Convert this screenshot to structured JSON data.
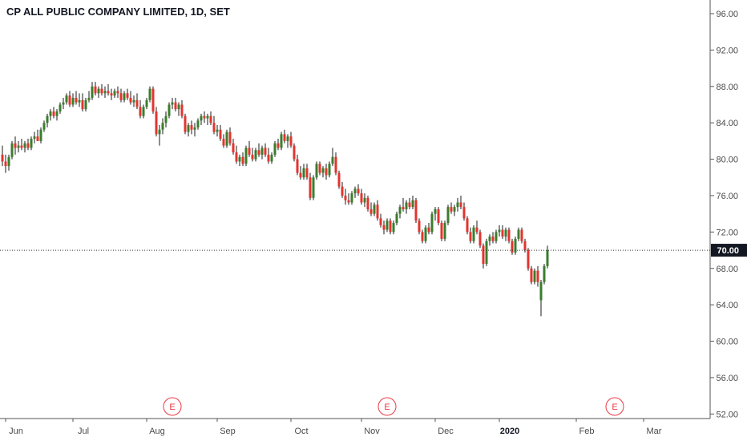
{
  "header": {
    "title": "CP ALL PUBLIC COMPANY LIMITED, 1D, SET"
  },
  "colors": {
    "up": "#3a7d2c",
    "down": "#e3342f",
    "wick": "#1b1b1b",
    "axis_line": "#555555",
    "axis_text": "#4a4a4a",
    "price_line": "#333333",
    "price_badge_bg": "#131722",
    "price_badge_text": "#ffffff",
    "earnings": "#ea3943"
  },
  "chart_data": {
    "type": "candlestick",
    "title": "CP ALL PUBLIC COMPANY LIMITED, 1D, SET",
    "interval": "1D",
    "exchange": "SET",
    "y_axis": {
      "position": "right",
      "ticks": [
        52,
        56,
        60,
        64,
        68,
        72,
        76,
        80,
        84,
        88,
        92,
        96
      ],
      "tick_labels": [
        "52.00",
        "56.00",
        "60.00",
        "64.00",
        "68.00",
        "72.00",
        "76.00",
        "80.00",
        "84.00",
        "88.00",
        "92.00",
        "96.00"
      ],
      "range": [
        51.5,
        97.5
      ]
    },
    "x_axis": {
      "tick_labels": [
        "Jun",
        "Jul",
        "Aug",
        "Sep",
        "Oct",
        "Nov",
        "Dec",
        "2020",
        "Feb",
        "Mar"
      ],
      "tick_index": [
        1,
        22,
        45,
        67,
        90,
        112,
        135,
        155,
        179,
        200
      ]
    },
    "current_price": {
      "value": 70.0,
      "label": "70.00"
    },
    "earnings_markers": [
      {
        "label": "E",
        "index": 53
      },
      {
        "label": "E",
        "index": 120
      },
      {
        "label": "E",
        "index": 191
      }
    ],
    "ohlc": [
      [
        80.5,
        81.5,
        79.25,
        79.75
      ],
      [
        79.75,
        80.5,
        78.5,
        79.25
      ],
      [
        79.25,
        80.5,
        78.75,
        80.25
      ],
      [
        80.25,
        82.0,
        80.0,
        81.75
      ],
      [
        81.75,
        82.5,
        80.5,
        81.25
      ],
      [
        81.25,
        82.0,
        80.75,
        81.5
      ],
      [
        81.5,
        82.25,
        81.0,
        81.25
      ],
      [
        81.25,
        82.0,
        80.75,
        81.75
      ],
      [
        81.75,
        82.25,
        81.0,
        81.25
      ],
      [
        81.25,
        82.5,
        81.0,
        82.25
      ],
      [
        82.25,
        83.0,
        81.75,
        82.5
      ],
      [
        82.5,
        83.25,
        82.0,
        82.0
      ],
      [
        82.0,
        83.5,
        81.75,
        83.25
      ],
      [
        83.25,
        84.25,
        83.0,
        84.0
      ],
      [
        84.0,
        85.0,
        83.5,
        84.75
      ],
      [
        84.75,
        85.5,
        84.25,
        85.25
      ],
      [
        85.25,
        85.75,
        84.5,
        84.75
      ],
      [
        84.75,
        85.5,
        84.25,
        85.25
      ],
      [
        85.25,
        86.25,
        85.0,
        86.0
      ],
      [
        86.0,
        86.75,
        85.5,
        86.25
      ],
      [
        86.25,
        87.25,
        86.0,
        87.0
      ],
      [
        87.0,
        87.5,
        85.75,
        86.0
      ],
      [
        86.0,
        87.25,
        85.75,
        86.75
      ],
      [
        86.75,
        87.5,
        86.0,
        86.25
      ],
      [
        86.25,
        87.25,
        85.75,
        86.5
      ],
      [
        86.5,
        87.25,
        85.25,
        85.5
      ],
      [
        85.5,
        86.75,
        85.25,
        86.5
      ],
      [
        86.5,
        87.5,
        86.25,
        86.75
      ],
      [
        86.75,
        88.5,
        86.5,
        88.0
      ],
      [
        88.0,
        88.5,
        87.0,
        87.25
      ],
      [
        87.25,
        88.0,
        86.75,
        87.75
      ],
      [
        87.75,
        88.25,
        87.0,
        87.25
      ],
      [
        87.25,
        88.0,
        86.75,
        87.5
      ],
      [
        87.5,
        88.25,
        87.0,
        87.25
      ],
      [
        87.25,
        87.75,
        86.5,
        87.0
      ],
      [
        87.0,
        87.75,
        86.75,
        87.5
      ],
      [
        87.5,
        88.0,
        86.75,
        87.25
      ],
      [
        87.25,
        87.75,
        86.25,
        86.5
      ],
      [
        86.5,
        87.5,
        86.25,
        87.25
      ],
      [
        87.25,
        87.75,
        86.5,
        86.75
      ],
      [
        86.75,
        87.5,
        86.0,
        86.25
      ],
      [
        86.25,
        87.0,
        85.75,
        86.5
      ],
      [
        86.5,
        87.25,
        85.5,
        85.75
      ],
      [
        85.75,
        86.5,
        84.5,
        84.75
      ],
      [
        84.75,
        86.0,
        84.5,
        85.75
      ],
      [
        85.75,
        86.75,
        85.5,
        86.5
      ],
      [
        86.5,
        88.0,
        86.25,
        87.75
      ],
      [
        87.75,
        88.0,
        85.0,
        85.25
      ],
      [
        85.25,
        85.75,
        82.5,
        82.75
      ],
      [
        82.75,
        83.75,
        81.5,
        83.25
      ],
      [
        83.25,
        84.5,
        82.75,
        84.0
      ],
      [
        84.0,
        85.25,
        83.5,
        84.75
      ],
      [
        84.75,
        86.25,
        84.5,
        86.0
      ],
      [
        86.0,
        86.75,
        85.5,
        86.25
      ],
      [
        86.25,
        86.75,
        85.25,
        85.5
      ],
      [
        85.5,
        86.25,
        84.75,
        86.0
      ],
      [
        86.0,
        86.5,
        84.5,
        84.75
      ],
      [
        84.75,
        85.0,
        82.75,
        83.0
      ],
      [
        83.0,
        84.0,
        82.5,
        83.75
      ],
      [
        83.75,
        84.25,
        82.75,
        83.25
      ],
      [
        83.25,
        84.0,
        82.5,
        83.5
      ],
      [
        83.5,
        84.5,
        83.25,
        84.25
      ],
      [
        84.25,
        85.0,
        83.75,
        84.75
      ],
      [
        84.75,
        85.25,
        84.0,
        84.5
      ],
      [
        84.5,
        85.0,
        83.75,
        84.75
      ],
      [
        84.75,
        85.25,
        83.75,
        84.0
      ],
      [
        84.0,
        84.75,
        82.75,
        83.0
      ],
      [
        83.0,
        83.75,
        82.5,
        83.25
      ],
      [
        83.25,
        83.75,
        82.0,
        82.25
      ],
      [
        82.25,
        82.75,
        81.25,
        81.5
      ],
      [
        81.5,
        83.25,
        81.25,
        83.0
      ],
      [
        83.0,
        83.5,
        81.5,
        81.75
      ],
      [
        81.75,
        82.25,
        80.5,
        80.75
      ],
      [
        80.75,
        81.5,
        79.5,
        79.75
      ],
      [
        79.75,
        80.5,
        79.25,
        80.25
      ],
      [
        80.25,
        80.75,
        79.25,
        79.5
      ],
      [
        79.5,
        81.5,
        79.25,
        81.25
      ],
      [
        81.25,
        82.0,
        80.25,
        80.5
      ],
      [
        80.5,
        81.25,
        79.75,
        80.0
      ],
      [
        80.0,
        81.25,
        79.75,
        81.0
      ],
      [
        81.0,
        81.75,
        80.25,
        80.5
      ],
      [
        80.5,
        81.5,
        80.0,
        81.25
      ],
      [
        81.25,
        81.75,
        80.25,
        80.5
      ],
      [
        80.5,
        81.25,
        79.5,
        79.75
      ],
      [
        79.75,
        80.75,
        79.5,
        80.5
      ],
      [
        80.5,
        82.0,
        80.25,
        81.75
      ],
      [
        81.75,
        82.25,
        81.0,
        81.25
      ],
      [
        81.25,
        83.0,
        81.0,
        82.75
      ],
      [
        82.75,
        83.25,
        81.75,
        82.0
      ],
      [
        82.0,
        82.75,
        81.25,
        82.5
      ],
      [
        82.5,
        83.0,
        81.25,
        81.5
      ],
      [
        81.5,
        81.75,
        79.75,
        80.0
      ],
      [
        80.0,
        80.5,
        78.25,
        78.5
      ],
      [
        78.5,
        79.25,
        77.75,
        78.0
      ],
      [
        78.0,
        79.5,
        77.75,
        79.0
      ],
      [
        79.0,
        79.5,
        77.75,
        78.0
      ],
      [
        78.0,
        78.5,
        75.5,
        75.75
      ],
      [
        75.75,
        78.25,
        75.5,
        78.0
      ],
      [
        78.0,
        79.75,
        77.75,
        79.5
      ],
      [
        79.5,
        79.75,
        78.25,
        78.5
      ],
      [
        78.5,
        79.25,
        78.0,
        79.0
      ],
      [
        79.0,
        79.5,
        77.75,
        78.25
      ],
      [
        78.25,
        79.75,
        78.0,
        79.5
      ],
      [
        79.5,
        81.25,
        79.25,
        80.25
      ],
      [
        80.25,
        80.75,
        78.25,
        78.5
      ],
      [
        78.5,
        78.75,
        76.75,
        77.0
      ],
      [
        77.0,
        77.5,
        75.75,
        76.0
      ],
      [
        76.0,
        76.75,
        75.0,
        75.5
      ],
      [
        75.5,
        76.25,
        75.0,
        75.25
      ],
      [
        75.25,
        76.5,
        75.0,
        76.25
      ],
      [
        76.25,
        77.0,
        75.75,
        76.75
      ],
      [
        76.75,
        77.25,
        76.0,
        76.25
      ],
      [
        76.25,
        76.75,
        75.0,
        75.25
      ],
      [
        75.25,
        76.25,
        74.75,
        75.75
      ],
      [
        75.75,
        76.0,
        74.25,
        74.5
      ],
      [
        74.5,
        75.25,
        73.75,
        74.0
      ],
      [
        74.0,
        75.25,
        73.75,
        75.0
      ],
      [
        75.0,
        75.5,
        73.25,
        73.5
      ],
      [
        73.5,
        74.0,
        72.5,
        72.75
      ],
      [
        72.75,
        73.25,
        71.75,
        72.25
      ],
      [
        72.25,
        73.5,
        72.0,
        73.25
      ],
      [
        73.25,
        73.5,
        71.75,
        72.0
      ],
      [
        72.0,
        73.25,
        71.75,
        73.0
      ],
      [
        73.0,
        74.25,
        72.75,
        74.0
      ],
      [
        74.0,
        75.0,
        73.5,
        74.75
      ],
      [
        74.75,
        75.75,
        74.25,
        74.5
      ],
      [
        74.5,
        75.5,
        74.0,
        75.25
      ],
      [
        75.25,
        75.75,
        74.5,
        74.75
      ],
      [
        74.75,
        76.0,
        74.5,
        75.5
      ],
      [
        75.5,
        75.75,
        73.0,
        73.25
      ],
      [
        73.25,
        73.5,
        71.75,
        72.0
      ],
      [
        72.0,
        72.25,
        70.75,
        71.0
      ],
      [
        71.0,
        72.75,
        70.75,
        72.5
      ],
      [
        72.5,
        73.0,
        71.75,
        72.0
      ],
      [
        72.0,
        74.25,
        71.75,
        74.0
      ],
      [
        74.0,
        74.75,
        73.25,
        74.5
      ],
      [
        74.5,
        74.75,
        72.75,
        73.0
      ],
      [
        73.0,
        73.25,
        71.0,
        71.25
      ],
      [
        71.25,
        73.25,
        71.0,
        73.0
      ],
      [
        73.0,
        75.0,
        72.75,
        74.75
      ],
      [
        74.75,
        75.25,
        74.0,
        74.25
      ],
      [
        74.25,
        75.0,
        73.75,
        74.75
      ],
      [
        74.75,
        75.75,
        74.25,
        75.25
      ],
      [
        75.25,
        76.0,
        74.5,
        74.75
      ],
      [
        74.75,
        75.25,
        73.25,
        73.5
      ],
      [
        73.5,
        73.75,
        71.75,
        72.0
      ],
      [
        72.0,
        72.5,
        70.75,
        71.0
      ],
      [
        71.0,
        72.75,
        70.75,
        72.5
      ],
      [
        72.5,
        73.25,
        71.75,
        72.0
      ],
      [
        72.0,
        72.25,
        70.25,
        70.5
      ],
      [
        70.5,
        70.75,
        68.0,
        68.5
      ],
      [
        68.5,
        71.25,
        68.25,
        71.0
      ],
      [
        71.0,
        71.75,
        70.5,
        71.5
      ],
      [
        71.5,
        72.0,
        70.75,
        71.0
      ],
      [
        71.0,
        72.25,
        70.75,
        72.0
      ],
      [
        72.0,
        72.75,
        71.5,
        72.25
      ],
      [
        72.25,
        72.75,
        71.25,
        71.5
      ],
      [
        71.5,
        72.5,
        71.0,
        72.25
      ],
      [
        72.25,
        72.5,
        70.75,
        71.0
      ],
      [
        71.0,
        71.25,
        69.5,
        69.75
      ],
      [
        69.75,
        71.5,
        69.5,
        71.25
      ],
      [
        71.25,
        72.5,
        71.0,
        72.25
      ],
      [
        72.25,
        72.5,
        70.75,
        71.0
      ],
      [
        71.0,
        71.25,
        69.75,
        70.0
      ],
      [
        70.0,
        70.25,
        67.75,
        68.0
      ],
      [
        68.0,
        68.25,
        66.25,
        66.5
      ],
      [
        66.5,
        68.0,
        66.25,
        67.75
      ],
      [
        67.75,
        68.25,
        66.0,
        66.5
      ],
      [
        64.5,
        66.75,
        62.75,
        66.5
      ],
      [
        66.5,
        68.5,
        66.25,
        68.25
      ],
      [
        68.25,
        70.5,
        68.0,
        70.0
      ]
    ]
  }
}
